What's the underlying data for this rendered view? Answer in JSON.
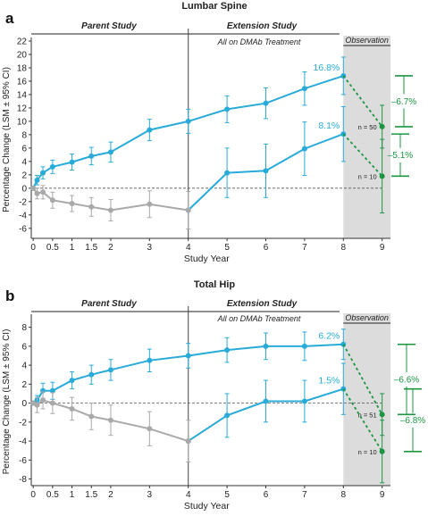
{
  "colors": {
    "extension": "#29abd9",
    "parent_placebo": "#a9a9a9",
    "observation_arrows": "#1a9641",
    "observation_bg": "#dcdcdc",
    "axes": "#333333"
  },
  "chart_data": [
    {
      "type": "line",
      "panel_label": "a",
      "title": "Lumbar Spine",
      "section_headers": {
        "parent": "Parent Study",
        "extension": "Extension Study",
        "extension_sub": "All on DMAb Treatment",
        "observation": "Observation"
      },
      "xlabel": "Study Year",
      "ylabel": "Percentage Change (LSM ± 95% CI)",
      "x_ticks": [
        0,
        0.5,
        1,
        1.5,
        2,
        3,
        4,
        5,
        6,
        7,
        8,
        9
      ],
      "x_tick_labels": [
        "0",
        "0.5",
        "1",
        "1.5",
        "2",
        "3",
        "4",
        "5",
        "6",
        "7",
        "8",
        "9"
      ],
      "y_ticks": [
        -6,
        -4,
        -2,
        0,
        2,
        4,
        6,
        8,
        10,
        12,
        14,
        16,
        18,
        20,
        22
      ],
      "y_tick_labels": [
        "-6",
        "-4",
        "-2",
        "0",
        "2",
        "4",
        "6",
        "8",
        "10",
        "12",
        "14",
        "16",
        "18",
        "20",
        "22"
      ],
      "xlim": [
        -0.05,
        9.1
      ],
      "ylim": [
        -7.5,
        22
      ],
      "observation_start": 8,
      "series": [
        {
          "color": "extension",
          "points": [
            [
              0,
              0
            ],
            [
              0.1,
              1.2
            ],
            [
              0.25,
              2.3
            ],
            [
              0.5,
              3.2
            ],
            [
              1,
              3.9
            ],
            [
              1.5,
              4.8
            ],
            [
              2,
              5.4
            ],
            [
              3,
              8.7
            ],
            [
              4,
              10.0
            ],
            [
              5,
              11.8
            ],
            [
              6,
              12.7
            ],
            [
              7,
              14.9
            ],
            [
              8,
              16.8
            ]
          ],
          "ci": [
            [
              0,
              0
            ],
            [
              0.1,
              0.7
            ],
            [
              0.25,
              0.9
            ],
            [
              0.5,
              1.0
            ],
            [
              1,
              1.2
            ],
            [
              1.5,
              1.3
            ],
            [
              2,
              1.5
            ],
            [
              3,
              1.6
            ],
            [
              4,
              1.8
            ],
            [
              5,
              2.0
            ],
            [
              6,
              2.3
            ],
            [
              7,
              2.5
            ],
            [
              8,
              2.8
            ]
          ]
        },
        {
          "color": "extension",
          "points": [
            [
              4,
              -3.3
            ],
            [
              5,
              2.3
            ],
            [
              6,
              2.6
            ],
            [
              7,
              5.9
            ],
            [
              8,
              8.1
            ]
          ],
          "ci": [
            [
              4,
              0
            ],
            [
              5,
              3.7
            ],
            [
              6,
              4.0
            ],
            [
              7,
              4.0
            ],
            [
              8,
              4.1
            ]
          ]
        },
        {
          "color": "parent_placebo",
          "points": [
            [
              0,
              0
            ],
            [
              0.1,
              -0.8
            ],
            [
              0.25,
              -0.6
            ],
            [
              0.5,
              -1.8
            ],
            [
              1,
              -2.3
            ],
            [
              1.5,
              -2.8
            ],
            [
              2,
              -3.3
            ],
            [
              3,
              -2.4
            ],
            [
              4,
              -3.3
            ]
          ],
          "ci": [
            [
              0,
              0
            ],
            [
              0.1,
              0.8
            ],
            [
              0.25,
              1.0
            ],
            [
              0.5,
              1.2
            ],
            [
              1,
              1.2
            ],
            [
              1.5,
              1.4
            ],
            [
              2,
              1.6
            ],
            [
              3,
              2.0
            ],
            [
              4,
              2.8
            ]
          ]
        }
      ],
      "observation_points": [
        {
          "from": [
            8,
            16.8
          ],
          "to": [
            9,
            9.2
          ],
          "ci": 3.2,
          "label": "n = 50",
          "change": "–6.7%"
        },
        {
          "from": [
            8,
            8.1
          ],
          "to": [
            9,
            1.8
          ],
          "ci": 5.5,
          "label": "n = 10",
          "change": "–5.1%"
        }
      ],
      "value_labels": [
        "16.8%",
        "8.1%"
      ]
    },
    {
      "type": "line",
      "panel_label": "b",
      "title": "Total Hip",
      "section_headers": {
        "parent": "Parent Study",
        "extension": "Extension Study",
        "extension_sub": "All on DMAb Treatment",
        "observation": "Observation"
      },
      "xlabel": "Study Year",
      "ylabel": "Percentage Change (LSM ± 95% CI)",
      "x_ticks": [
        0,
        0.5,
        1,
        1.5,
        2,
        3,
        4,
        5,
        6,
        7,
        8,
        9
      ],
      "x_tick_labels": [
        "0",
        "0.5",
        "1",
        "1.5",
        "2",
        "3",
        "4",
        "5",
        "6",
        "7",
        "8",
        "9"
      ],
      "y_ticks": [
        -8,
        -6,
        -4,
        -2,
        0,
        2,
        4,
        6,
        8
      ],
      "y_tick_labels": [
        "-8",
        "-6",
        "-4",
        "-2",
        "0",
        "2",
        "4",
        "6",
        "8"
      ],
      "xlim": [
        -0.05,
        9.1
      ],
      "ylim": [
        -8.7,
        9.0
      ],
      "observation_start": 8,
      "series": [
        {
          "color": "extension",
          "points": [
            [
              0,
              0
            ],
            [
              0.1,
              0.3
            ],
            [
              0.25,
              1.3
            ],
            [
              0.5,
              1.3
            ],
            [
              1,
              2.4
            ],
            [
              1.5,
              3.0
            ],
            [
              2,
              3.5
            ],
            [
              3,
              4.5
            ],
            [
              4,
              5.0
            ],
            [
              5,
              5.6
            ],
            [
              6,
              6.0
            ],
            [
              7,
              6.0
            ],
            [
              8,
              6.2
            ]
          ],
          "ci": [
            [
              0,
              0
            ],
            [
              0.1,
              0.5
            ],
            [
              0.25,
              0.8
            ],
            [
              0.5,
              0.9
            ],
            [
              1,
              0.9
            ],
            [
              1.5,
              1.0
            ],
            [
              2,
              1.1
            ],
            [
              3,
              1.2
            ],
            [
              4,
              1.3
            ],
            [
              5,
              1.3
            ],
            [
              6,
              1.4
            ],
            [
              7,
              1.5
            ],
            [
              8,
              1.6
            ]
          ]
        },
        {
          "color": "extension",
          "points": [
            [
              4,
              -4.0
            ],
            [
              5,
              -1.3
            ],
            [
              6,
              0.2
            ],
            [
              7,
              0.2
            ],
            [
              8,
              1.5
            ]
          ],
          "ci": [
            [
              4,
              0
            ],
            [
              5,
              2.3
            ],
            [
              6,
              2.2
            ],
            [
              7,
              2.2
            ],
            [
              8,
              2.7
            ]
          ]
        },
        {
          "color": "parent_placebo",
          "points": [
            [
              0,
              0
            ],
            [
              0.1,
              -0.2
            ],
            [
              0.25,
              0.3
            ],
            [
              0.5,
              0.0
            ],
            [
              1,
              -0.6
            ],
            [
              1.5,
              -1.4
            ],
            [
              2,
              -1.8
            ],
            [
              3,
              -2.7
            ],
            [
              4,
              -4.0
            ]
          ],
          "ci": [
            [
              0,
              0
            ],
            [
              0.1,
              0.8
            ],
            [
              0.25,
              0.9
            ],
            [
              0.5,
              1.1
            ],
            [
              1,
              1.2
            ],
            [
              1.5,
              1.4
            ],
            [
              2,
              1.6
            ],
            [
              3,
              1.8
            ],
            [
              4,
              2.2
            ]
          ]
        }
      ],
      "observation_points": [
        {
          "from": [
            8,
            6.2
          ],
          "to": [
            9,
            -1.2
          ],
          "ci": 2.2,
          "label": "n = 51",
          "change": "–6.6%"
        },
        {
          "from": [
            8,
            1.5
          ],
          "to": [
            9,
            -5.1
          ],
          "ci": 3.3,
          "label": "n = 10",
          "change": "–6.8%"
        }
      ],
      "value_labels": [
        "6.2%",
        "1.5%"
      ]
    }
  ]
}
